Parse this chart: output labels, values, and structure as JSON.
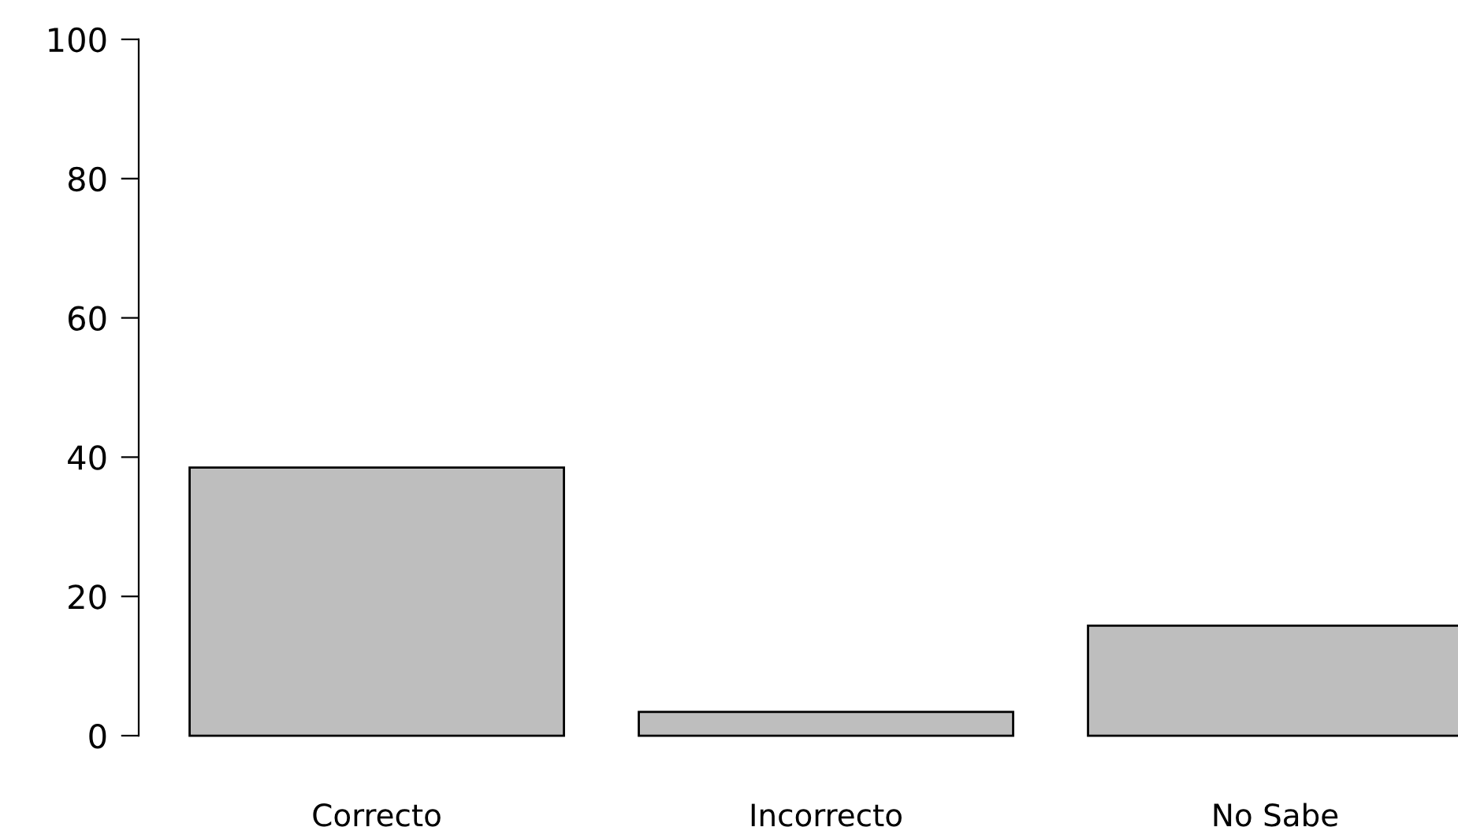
{
  "chart_data": {
    "type": "bar",
    "categories": [
      "Correcto",
      "Incorrecto",
      "No Sabe"
    ],
    "values": [
      38.5,
      3.4,
      15.8
    ],
    "color": "#bebebe",
    "ylim": [
      0,
      100
    ],
    "yticks": [
      0,
      20,
      40,
      60,
      80,
      100
    ],
    "grid": false,
    "legend": false
  }
}
